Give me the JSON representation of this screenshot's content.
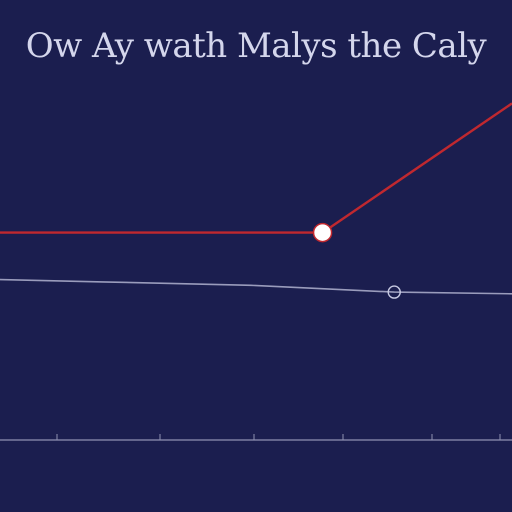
{
  "title": "Ow Ay wath Malys the Caly",
  "subtitle": "",
  "colors": {
    "background": "#1b1e4f",
    "text": "#d4d6ec",
    "series_primary": "#c0282f",
    "series_secondary": "#9a9cbc",
    "axis": "#8f91b2"
  },
  "chart_data": {
    "type": "line",
    "title": "Ow Ay wath Malys the Caly",
    "xlabel": "",
    "ylabel": "",
    "x": [
      0,
      1,
      2,
      3,
      4,
      5
    ],
    "xlim": [
      0,
      5
    ],
    "ylim": [
      0,
      10
    ],
    "grid": false,
    "legend": "none",
    "tick_labels": [
      "",
      "",
      "",
      "",
      "",
      ""
    ],
    "series": [
      {
        "color": "#c0282f",
        "x": [
          0,
          3.15,
          5
        ],
        "y": [
          6.1,
          6.1,
          9.9
        ],
        "markers": [
          {
            "x": 3.15,
            "y": 6.1,
            "style": "filled-white"
          }
        ]
      },
      {
        "color": "#9a9cbc",
        "x": [
          0,
          1,
          2.45,
          3.85,
          5
        ],
        "y": [
          4.72,
          4.65,
          4.55,
          4.35,
          4.3
        ],
        "markers": [
          {
            "x": 3.85,
            "y": 4.35,
            "style": "ring"
          }
        ]
      }
    ]
  }
}
